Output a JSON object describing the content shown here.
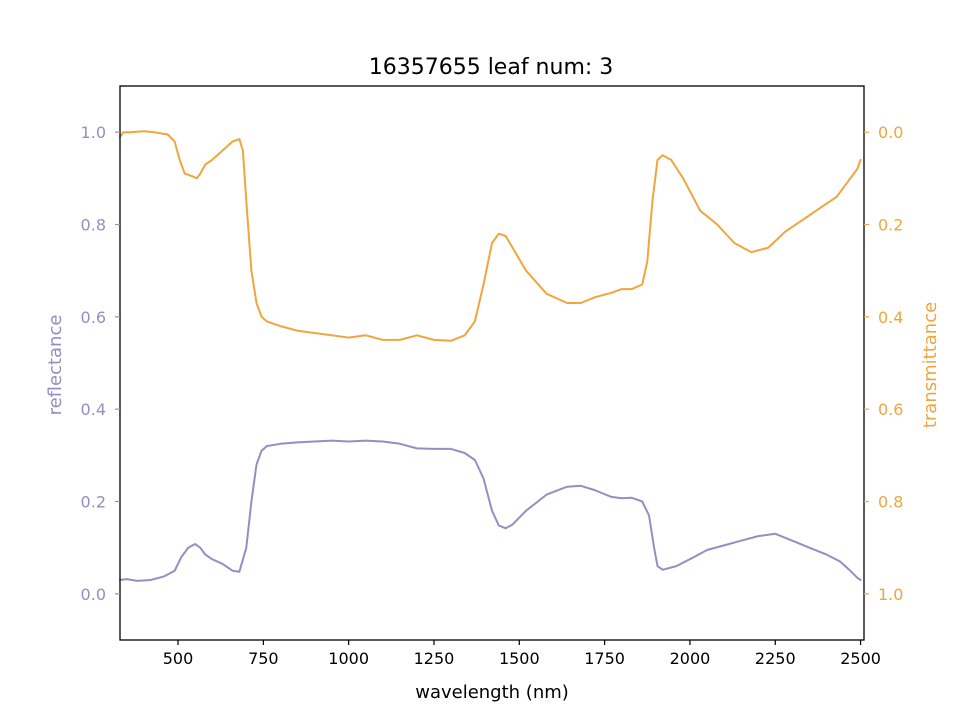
{
  "chart_data": {
    "type": "line",
    "title": "16357655 leaf num: 3",
    "xlabel": "wavelength (nm)",
    "ylabel_left": "reflectance",
    "ylabel_right": "transmittance",
    "xlim": [
      330,
      2510
    ],
    "ylim_left": [
      -0.1,
      1.1
    ],
    "ylim_right": [
      1.1,
      -0.1
    ],
    "right_axis_inverted": true,
    "grid": false,
    "legend": "none",
    "x_ticks": [
      500,
      750,
      1000,
      1250,
      1500,
      1750,
      2000,
      2250,
      2500
    ],
    "x_tick_labels": [
      "500",
      "750",
      "1000",
      "1250",
      "1500",
      "1750",
      "2000",
      "2250",
      "2500"
    ],
    "left_ticks": [
      0.0,
      0.2,
      0.4,
      0.6,
      0.8,
      1.0
    ],
    "left_tick_labels": [
      "0.0",
      "0.2",
      "0.4",
      "0.6",
      "0.8",
      "1.0"
    ],
    "right_ticks": [
      0.0,
      0.2,
      0.4,
      0.6,
      0.8,
      1.0
    ],
    "right_tick_labels": [
      "0.0",
      "0.2",
      "0.4",
      "0.6",
      "0.8",
      "1.0"
    ],
    "colors": {
      "reflectance": "#938fc1",
      "transmittance": "#f0a53f",
      "axes": "#000000"
    },
    "series": [
      {
        "axis": "left",
        "color": "#938fc1",
        "x": [
          330,
          350,
          380,
          420,
          460,
          490,
          510,
          530,
          550,
          565,
          580,
          600,
          630,
          660,
          680,
          700,
          715,
          730,
          745,
          760,
          800,
          850,
          900,
          950,
          1000,
          1050,
          1100,
          1150,
          1200,
          1250,
          1300,
          1340,
          1370,
          1395,
          1420,
          1440,
          1460,
          1480,
          1520,
          1580,
          1640,
          1680,
          1720,
          1770,
          1800,
          1830,
          1860,
          1880,
          1895,
          1905,
          1920,
          1960,
          2000,
          2050,
          2100,
          2150,
          2200,
          2250,
          2300,
          2350,
          2400,
          2440,
          2470,
          2490,
          2500
        ],
        "y": [
          0.03,
          0.032,
          0.028,
          0.03,
          0.038,
          0.05,
          0.08,
          0.1,
          0.108,
          0.1,
          0.085,
          0.075,
          0.065,
          0.05,
          0.048,
          0.1,
          0.2,
          0.28,
          0.31,
          0.32,
          0.325,
          0.328,
          0.33,
          0.332,
          0.33,
          0.332,
          0.33,
          0.325,
          0.315,
          0.314,
          0.314,
          0.305,
          0.29,
          0.25,
          0.18,
          0.148,
          0.142,
          0.15,
          0.18,
          0.215,
          0.232,
          0.234,
          0.225,
          0.21,
          0.207,
          0.208,
          0.2,
          0.17,
          0.1,
          0.06,
          0.052,
          0.06,
          0.075,
          0.095,
          0.105,
          0.115,
          0.125,
          0.13,
          0.115,
          0.1,
          0.085,
          0.07,
          0.05,
          0.035,
          0.03
        ]
      },
      {
        "axis": "right",
        "color": "#f0a53f",
        "x": [
          330,
          340,
          360,
          400,
          430,
          470,
          490,
          505,
          520,
          540,
          555,
          565,
          580,
          600,
          630,
          660,
          680,
          690,
          700,
          715,
          730,
          745,
          760,
          800,
          850,
          900,
          950,
          1000,
          1050,
          1100,
          1150,
          1200,
          1250,
          1300,
          1340,
          1370,
          1395,
          1420,
          1440,
          1460,
          1480,
          1520,
          1580,
          1640,
          1680,
          1720,
          1770,
          1800,
          1830,
          1860,
          1875,
          1890,
          1905,
          1920,
          1945,
          1980,
          2030,
          2080,
          2130,
          2180,
          2230,
          2280,
          2330,
          2380,
          2430,
          2470,
          2490,
          2500
        ],
        "y": [
          0.01,
          0.0,
          0.0,
          -0.002,
          0.0,
          0.005,
          0.02,
          0.06,
          0.09,
          0.095,
          0.1,
          0.09,
          0.07,
          0.06,
          0.04,
          0.02,
          0.015,
          0.04,
          0.15,
          0.3,
          0.37,
          0.4,
          0.41,
          0.42,
          0.43,
          0.435,
          0.44,
          0.445,
          0.44,
          0.45,
          0.45,
          0.44,
          0.45,
          0.452,
          0.44,
          0.41,
          0.33,
          0.24,
          0.22,
          0.225,
          0.25,
          0.3,
          0.35,
          0.37,
          0.37,
          0.358,
          0.348,
          0.34,
          0.34,
          0.33,
          0.28,
          0.15,
          0.06,
          0.05,
          0.06,
          0.1,
          0.17,
          0.2,
          0.24,
          0.26,
          0.25,
          0.215,
          0.19,
          0.165,
          0.14,
          0.1,
          0.08,
          0.06
        ]
      }
    ]
  }
}
